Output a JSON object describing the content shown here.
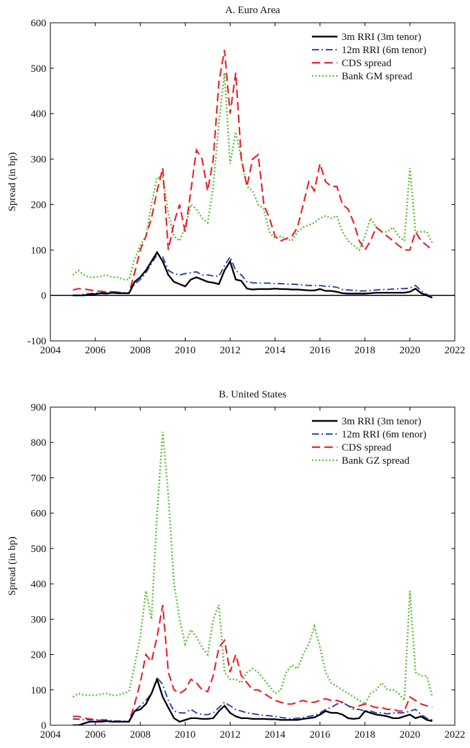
{
  "chart_data": [
    {
      "type": "line",
      "title": "A. Euro Area",
      "y_label": "Spread (in bp)",
      "x": [
        2005,
        2005.25,
        2005.5,
        2005.75,
        2006,
        2006.25,
        2006.5,
        2006.75,
        2007,
        2007.25,
        2007.5,
        2007.75,
        2008,
        2008.25,
        2008.5,
        2008.75,
        2009,
        2009.25,
        2009.5,
        2009.75,
        2010,
        2010.25,
        2010.5,
        2010.75,
        2011,
        2011.25,
        2011.5,
        2011.75,
        2012,
        2012.25,
        2012.5,
        2012.75,
        2013,
        2013.25,
        2013.5,
        2013.75,
        2014,
        2014.25,
        2014.5,
        2014.75,
        2015,
        2015.25,
        2015.5,
        2015.75,
        2016,
        2016.25,
        2016.5,
        2016.75,
        2017,
        2017.25,
        2017.5,
        2017.75,
        2018,
        2018.25,
        2018.5,
        2018.75,
        2019,
        2019.25,
        2019.5,
        2019.75,
        2020,
        2020.25,
        2020.5,
        2020.75,
        2021
      ],
      "series": [
        {
          "name": "3m RRI (3m tenor)",
          "color": "#000000",
          "dash": "solid",
          "values": [
            0,
            0,
            0,
            2,
            3,
            5,
            4,
            6,
            5,
            5,
            5,
            30,
            40,
            55,
            75,
            95,
            75,
            45,
            30,
            25,
            20,
            35,
            40,
            35,
            30,
            28,
            25,
            55,
            75,
            35,
            32,
            15,
            13,
            14,
            14,
            14,
            15,
            14,
            14,
            13,
            13,
            12,
            11,
            11,
            14,
            10,
            10,
            8,
            5,
            4,
            4,
            4,
            4,
            5,
            6,
            6,
            6,
            6,
            6,
            6,
            8,
            15,
            5,
            0,
            -5
          ]
        },
        {
          "name": "12m RRI (6m tenor)",
          "color": "#2a47a8",
          "dash": "dashdot",
          "values": [
            0,
            0,
            3,
            4,
            5,
            6,
            6,
            8,
            7,
            6,
            5,
            25,
            35,
            50,
            70,
            90,
            85,
            55,
            48,
            45,
            48,
            50,
            52,
            45,
            45,
            43,
            42,
            65,
            85,
            55,
            45,
            30,
            28,
            27,
            27,
            27,
            26,
            26,
            25,
            25,
            24,
            23,
            22,
            22,
            22,
            20,
            20,
            18,
            13,
            12,
            11,
            10,
            10,
            11,
            12,
            13,
            13,
            14,
            15,
            15,
            16,
            22,
            10,
            2,
            -3
          ]
        },
        {
          "name": "CDS spread",
          "color": "#e8222a",
          "dash": "dashed",
          "values": [
            12,
            15,
            14,
            12,
            10,
            9,
            8,
            8,
            7,
            5,
            5,
            50,
            100,
            130,
            170,
            230,
            280,
            100,
            160,
            200,
            140,
            230,
            320,
            300,
            230,
            300,
            470,
            540,
            400,
            490,
            300,
            240,
            300,
            310,
            200,
            170,
            130,
            120,
            125,
            130,
            150,
            200,
            250,
            230,
            290,
            250,
            240,
            240,
            200,
            190,
            160,
            120,
            100,
            120,
            150,
            140,
            130,
            120,
            110,
            100,
            100,
            140,
            120,
            110,
            100
          ]
        },
        {
          "name": "Bank GM spread",
          "color": "#5fbf3a",
          "dash": "dotted",
          "values": [
            45,
            55,
            45,
            40,
            40,
            42,
            45,
            40,
            40,
            35,
            35,
            80,
            110,
            130,
            200,
            260,
            260,
            180,
            130,
            120,
            150,
            200,
            190,
            170,
            160,
            240,
            380,
            490,
            290,
            360,
            300,
            240,
            230,
            200,
            190,
            140,
            125,
            130,
            125,
            120,
            140,
            150,
            155,
            160,
            170,
            175,
            170,
            175,
            140,
            120,
            110,
            100,
            130,
            170,
            150,
            140,
            140,
            150,
            130,
            120,
            280,
            140,
            140,
            140,
            115
          ]
        }
      ],
      "xlim": [
        2004,
        2022
      ],
      "xticks": [
        2004,
        2006,
        2008,
        2010,
        2012,
        2014,
        2016,
        2018,
        2020,
        2022
      ],
      "ylim": [
        -100,
        600
      ],
      "yticks": [
        -100,
        0,
        100,
        200,
        300,
        400,
        500,
        600
      ],
      "zero_line": true,
      "legend": "upper right"
    },
    {
      "type": "line",
      "title": "B. United States",
      "y_label": "Spread (in bp)",
      "x": [
        2005,
        2005.25,
        2005.5,
        2005.75,
        2006,
        2006.25,
        2006.5,
        2006.75,
        2007,
        2007.25,
        2007.5,
        2007.75,
        2008,
        2008.25,
        2008.5,
        2008.75,
        2009,
        2009.25,
        2009.5,
        2009.75,
        2010,
        2010.25,
        2010.5,
        2010.75,
        2011,
        2011.25,
        2011.5,
        2011.75,
        2012,
        2012.25,
        2012.5,
        2012.75,
        2013,
        2013.25,
        2013.5,
        2013.75,
        2014,
        2014.25,
        2014.5,
        2014.75,
        2015,
        2015.25,
        2015.5,
        2015.75,
        2016,
        2016.25,
        2016.5,
        2016.75,
        2017,
        2017.25,
        2017.5,
        2017.75,
        2018,
        2018.25,
        2018.5,
        2018.75,
        2019,
        2019.25,
        2019.5,
        2019.75,
        2020,
        2020.25,
        2020.5,
        2020.75,
        2021
      ],
      "series": [
        {
          "name": "3m RRI (3m tenor)",
          "color": "#000000",
          "dash": "solid",
          "values": [
            0,
            0,
            5,
            10,
            10,
            10,
            12,
            10,
            10,
            10,
            10,
            40,
            45,
            60,
            90,
            130,
            80,
            50,
            20,
            10,
            15,
            20,
            20,
            18,
            18,
            20,
            40,
            55,
            35,
            25,
            20,
            20,
            18,
            18,
            18,
            17,
            17,
            15,
            15,
            15,
            15,
            18,
            20,
            22,
            30,
            40,
            35,
            35,
            30,
            20,
            18,
            20,
            40,
            35,
            30,
            28,
            25,
            20,
            20,
            25,
            30,
            20,
            25,
            15,
            12
          ]
        },
        {
          "name": "12m RRI (6m tenor)",
          "color": "#2a47a8",
          "dash": "dashdot",
          "values": [
            18,
            17,
            16,
            15,
            15,
            15,
            15,
            13,
            12,
            12,
            12,
            40,
            55,
            70,
            90,
            135,
            115,
            70,
            40,
            35,
            35,
            45,
            35,
            30,
            30,
            35,
            50,
            65,
            55,
            45,
            40,
            35,
            33,
            30,
            28,
            27,
            25,
            22,
            20,
            18,
            20,
            22,
            25,
            28,
            35,
            45,
            50,
            60,
            65,
            55,
            45,
            45,
            40,
            40,
            35,
            35,
            32,
            35,
            35,
            35,
            40,
            45,
            30,
            20,
            15
          ]
        },
        {
          "name": "CDS spread",
          "color": "#e8222a",
          "dash": "dashed",
          "values": [
            25,
            25,
            20,
            18,
            15,
            13,
            12,
            10,
            10,
            10,
            10,
            60,
            120,
            200,
            180,
            250,
            340,
            150,
            100,
            90,
            100,
            130,
            120,
            100,
            95,
            140,
            220,
            240,
            150,
            200,
            140,
            120,
            100,
            100,
            90,
            80,
            70,
            65,
            60,
            60,
            65,
            70,
            65,
            65,
            70,
            75,
            70,
            70,
            65,
            55,
            50,
            55,
            60,
            55,
            50,
            50,
            45,
            45,
            40,
            40,
            80,
            70,
            60,
            55,
            50
          ]
        },
        {
          "name": "Bank GZ spread",
          "color": "#5fbf3a",
          "dash": "dotted",
          "values": [
            80,
            90,
            85,
            85,
            85,
            88,
            90,
            85,
            85,
            90,
            95,
            170,
            250,
            380,
            300,
            600,
            830,
            650,
            400,
            300,
            230,
            270,
            250,
            220,
            200,
            300,
            340,
            150,
            130,
            130,
            120,
            150,
            160,
            150,
            130,
            110,
            90,
            100,
            150,
            170,
            160,
            200,
            230,
            280,
            220,
            150,
            120,
            110,
            100,
            90,
            80,
            70,
            60,
            90,
            100,
            120,
            100,
            100,
            90,
            70,
            380,
            150,
            140,
            140,
            80
          ]
        }
      ],
      "xlim": [
        2004,
        2022
      ],
      "xticks": [
        2004,
        2006,
        2008,
        2010,
        2012,
        2014,
        2016,
        2018,
        2020,
        2022
      ],
      "ylim": [
        0,
        900
      ],
      "yticks": [
        0,
        100,
        200,
        300,
        400,
        500,
        600,
        700,
        800,
        900
      ],
      "zero_line": false,
      "legend": "upper right"
    }
  ]
}
